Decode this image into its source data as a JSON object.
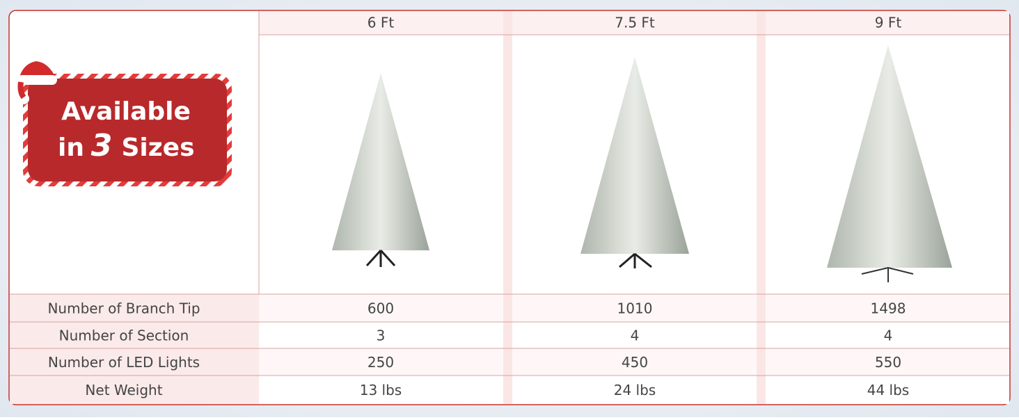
{
  "badge": {
    "line1": "Available",
    "line2_prefix": "in",
    "number": "3",
    "line2_suffix": "Sizes"
  },
  "table": {
    "columns": [
      "6 Ft",
      "7.5 Ft",
      "9 Ft"
    ],
    "rows": [
      [
        "Number of Branch Tip",
        "600",
        "1010",
        "1498"
      ],
      [
        "Number of Section",
        "3",
        "4",
        "4"
      ],
      [
        "Number of LED Lights",
        "250",
        "450",
        "550"
      ],
      [
        "Net Weight",
        "13 lbs",
        "24 lbs",
        "44 lbs"
      ]
    ]
  }
}
